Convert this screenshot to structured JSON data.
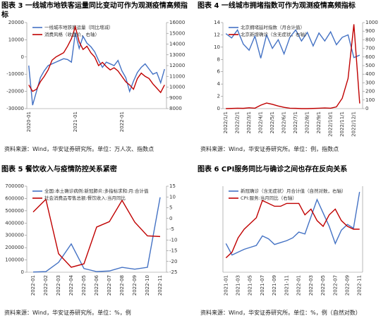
{
  "chart_data": [
    {
      "type": "line",
      "title": "图表 3 一线城市地铁客运量同比变动可作为观测疫情高频指标",
      "note": "资料来源：Wind，华安证券研究所。单位：万人次、指数点",
      "categories": [
        "2020-01",
        null,
        null,
        null,
        null,
        null,
        null,
        null,
        null,
        null,
        null,
        null,
        "2021-01",
        null,
        null,
        null,
        null,
        null,
        null,
        null,
        null,
        null,
        null,
        null,
        "2022-01",
        null,
        null,
        null,
        null,
        null,
        null,
        null,
        null,
        null,
        null,
        null
      ],
      "series": [
        {
          "name": "一线城市地铁客运量（同比增减）",
          "color": "#4472c4",
          "axis": "y",
          "values": [
            -5000,
            -28000,
            -20000,
            -12000,
            -8000,
            -5000,
            -4000,
            -3000,
            -2000,
            -1000,
            -1500,
            -3000,
            14000,
            5000,
            12000,
            8000,
            6000,
            3000,
            -2000,
            -6000,
            -3000,
            -4000,
            -5000,
            -2000,
            -8000,
            -12000,
            -20000,
            -14000,
            -9000,
            -6000,
            -4000,
            -7000,
            -10000,
            -9000,
            -15000,
            -7000
          ]
        },
        {
          "name": "消费风格（收盘价，右轴）",
          "color": "#c00000",
          "axis": "y2",
          "values": [
            10200,
            9600,
            9800,
            10500,
            11000,
            11600,
            12500,
            12800,
            13000,
            13200,
            13800,
            14500,
            15600,
            14200,
            13500,
            13800,
            13200,
            12800,
            12000,
            12300,
            11900,
            11600,
            11800,
            11500,
            11000,
            10500,
            10200,
            9800,
            10800,
            11300,
            11000,
            10800,
            10300,
            9900,
            9500,
            10200
          ]
        }
      ],
      "ylim": [
        -30000,
        20000
      ],
      "yticks": [
        -30000,
        -20000,
        -10000,
        0,
        10000,
        20000
      ],
      "y2lim": [
        8000,
        16000
      ],
      "y2ticks": [
        8000,
        9000,
        10000,
        11000,
        12000,
        13000,
        14000,
        15000,
        16000
      ]
    },
    {
      "type": "line",
      "title": "图表 4 一线城市拥堵指数可作为观测疫情高频指标",
      "note": "资料来源：Wind，华安证券研究所。单位：例，指数点",
      "categories": [
        "2022/1/1",
        null,
        "2022/2/1",
        null,
        "2022/3/1",
        null,
        "2022/4/1",
        null,
        "2022/5/1",
        null,
        "2022/6/1",
        null,
        "2022/7/1",
        null,
        "2022/8/1",
        null,
        "2022/9/1",
        null,
        "2022/10/1",
        null,
        "2022/11/1",
        null,
        "2022/12/1",
        null
      ],
      "series": [
        {
          "name": "北京拥堵延时指数（月合计值）",
          "color": "#4472c4",
          "axis": "y",
          "values": [
            12.2,
            11.5,
            12.8,
            10.5,
            9.5,
            11.8,
            8.2,
            12,
            9.8,
            11.2,
            8.9,
            11.6,
            12.8,
            11,
            12.4,
            10.2,
            12.3,
            11,
            12.5,
            10.4,
            11.6,
            12,
            8.3,
            8.7
          ]
        },
        {
          "name": "北京新增确诊（含无症状，右轴）",
          "color": "#c00000",
          "axis": "y2",
          "values": [
            0,
            2,
            5,
            3,
            10,
            5,
            40,
            65,
            50,
            30,
            15,
            5,
            3,
            0,
            0,
            2,
            5,
            8,
            5,
            20,
            120,
            350,
            980,
            60
          ]
        }
      ],
      "ylim": [
        0,
        14
      ],
      "yticks": [
        0,
        2,
        4,
        6,
        8,
        10,
        12,
        14
      ],
      "y2lim": [
        0,
        1000
      ],
      "y2ticks": [
        0,
        100,
        200,
        300,
        400,
        500,
        600,
        700,
        800,
        900,
        1000
      ]
    },
    {
      "type": "line",
      "title": "图表 5 餐饮收入与疫情防控关系紧密",
      "note": "资料来源：Wind，华安证券研究所。单位：%，例",
      "categories": [
        "2022-01",
        "2022-02",
        "2022-03",
        "2022-04",
        "2022-05",
        "2022-06",
        "2022-07",
        "2022-08",
        "2022-09",
        "2022-10",
        "2022-11"
      ],
      "series": [
        {
          "name": "全国:本土确诊病例:新冠肺炎:多指标求和:月:合计值",
          "color": "#4472c4",
          "axis": "y",
          "values": [
            2000,
            5000,
            80000,
            230000,
            30000,
            5000,
            10000,
            40000,
            25000,
            40000,
            610000
          ]
        },
        {
          "name": "社会消费品零售总额:餐饮收入:当月同比",
          "color": "#c00000",
          "axis": "y2",
          "values": [
            3,
            8.9,
            -16.4,
            -22.7,
            -21.1,
            -4,
            -1.5,
            8.4,
            -1.7,
            -8.1,
            -8.4
          ]
        }
      ],
      "ylim": [
        0,
        700000
      ],
      "yticks": [
        0,
        100000,
        200000,
        300000,
        400000,
        500000,
        600000,
        700000
      ],
      "y2lim": [
        -25,
        15
      ],
      "y2ticks": [
        -25,
        -20,
        -15,
        -10,
        -5,
        0,
        5,
        10,
        15
      ]
    },
    {
      "type": "line",
      "title": "图表 6 CPI服务同比与确诊之间也存在反向关系",
      "note": "资料来源：Wind，华安证券研究所。单位：%，例（自然对数）",
      "categories": [
        "2021-01",
        null,
        "2021-03",
        null,
        "2021-05",
        null,
        "2021-07",
        null,
        "2021-09",
        null,
        "2021-11",
        null,
        "2022-01",
        null,
        "2022-03",
        null,
        "2022-05",
        null,
        "2022-07",
        null,
        "2022-09",
        null,
        "2022-11"
      ],
      "series": [
        {
          "name": "新冠确诊（含无症状）月合计值（自然对数，右轴）",
          "color": "#4472c4",
          "axis": "y2",
          "values": [
            7.0,
            5.8,
            6.1,
            6.4,
            6.6,
            6.8,
            7.8,
            7.5,
            6.9,
            7.1,
            7.3,
            7.6,
            8.2,
            8.0,
            9.8,
            11.6,
            10.2,
            8.8,
            7.0,
            8.4,
            9.0,
            8.6,
            12.4
          ]
        },
        {
          "name": "CPI:服务:当月同比（右轴）",
          "color": "#c00000",
          "axis": "y",
          "values": [
            -0.5,
            -0.3,
            0.2,
            0.5,
            0.7,
            0.9,
            1.5,
            1.4,
            1.3,
            1.3,
            1.4,
            1.4,
            1.4,
            1.0,
            1.2,
            0.8,
            0.6,
            1.0,
            1.2,
            0.8,
            0.6,
            0.5,
            0.5
          ]
        }
      ],
      "ylim": [
        -1,
        2
      ],
      "y2lim": [
        4,
        13
      ]
    }
  ]
}
